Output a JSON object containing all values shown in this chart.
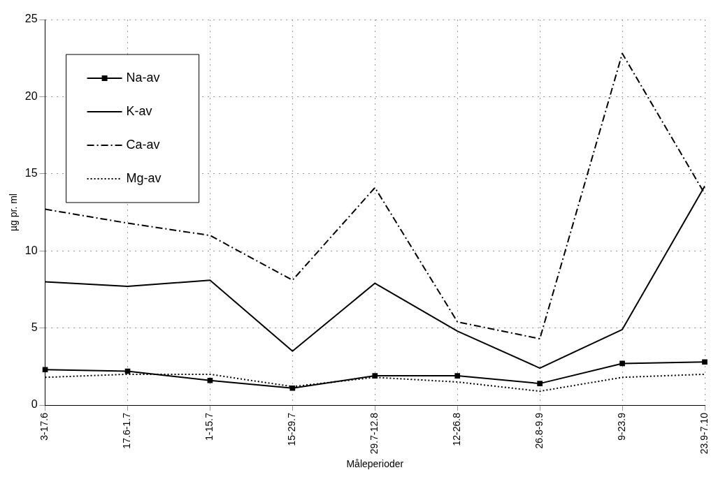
{
  "chart_data": {
    "type": "line",
    "xlabel": "Måleperioder",
    "ylabel": "µg pr. ml",
    "categories": [
      "3-17.6",
      "17.6-1.7",
      "1-15.7",
      "15-29.7",
      "29.7-12.8",
      "12-26.8",
      "26.8-9.9",
      "9-23.9",
      "23.9-7.10"
    ],
    "series": [
      {
        "name": "Na-av",
        "color": "#000000",
        "marker": "square",
        "line_style": "solid",
        "values": [
          2.3,
          2.2,
          1.6,
          1.1,
          1.9,
          1.9,
          1.4,
          2.7,
          2.8
        ]
      },
      {
        "name": "K-av",
        "color": "#000000",
        "marker": "none",
        "line_style": "solid",
        "values": [
          8.0,
          7.7,
          8.1,
          3.5,
          7.9,
          4.8,
          2.4,
          4.9,
          14.2
        ]
      },
      {
        "name": "Ca-av",
        "color": "#000000",
        "marker": "none",
        "line_style": "dashed",
        "values": [
          12.7,
          11.8,
          11.0,
          8.1,
          14.1,
          5.4,
          4.3,
          22.8,
          13.7
        ]
      },
      {
        "name": "Mg-av",
        "color": "#000000",
        "marker": "none",
        "line_style": "dotted",
        "values": [
          1.8,
          2.0,
          2.0,
          1.2,
          1.8,
          1.5,
          0.9,
          1.8,
          2.0
        ]
      }
    ],
    "ylim": [
      0,
      25
    ],
    "yticks": [
      0,
      5,
      10,
      15,
      20,
      25
    ],
    "grid": true,
    "legend": "top left"
  }
}
